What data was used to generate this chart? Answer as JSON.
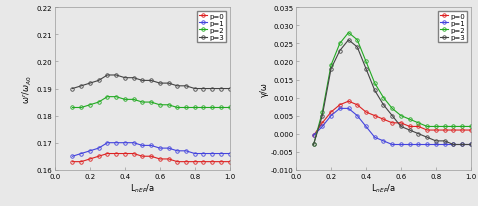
{
  "left_xlabel": "L$_{nEP}$/a",
  "left_ylabel": "ω$^r$/$ω_{A0}$",
  "right_xlabel": "L$_{nEP}$/a",
  "right_ylabel": "γ/ω",
  "left_ylim": [
    0.16,
    0.22
  ],
  "right_ylim": [
    -0.01,
    0.035
  ],
  "left_yticks": [
    0.16,
    0.17,
    0.18,
    0.19,
    0.2,
    0.21,
    0.22
  ],
  "right_yticks": [
    -0.01,
    -0.005,
    0.0,
    0.005,
    0.01,
    0.015,
    0.02,
    0.025,
    0.03,
    0.035
  ],
  "xlim": [
    0,
    1.0
  ],
  "xticks": [
    0,
    0.2,
    0.4,
    0.6,
    0.8,
    1.0
  ],
  "colors": [
    "#dd2222",
    "#4444dd",
    "#22aa22",
    "#444444"
  ],
  "labels": [
    "p=0",
    "p=1",
    "p=2",
    "p=3"
  ],
  "bg_color": "#e8e8e8",
  "x_vals": [
    0.1,
    0.15,
    0.2,
    0.25,
    0.3,
    0.35,
    0.4,
    0.45,
    0.5,
    0.55,
    0.6,
    0.65,
    0.7,
    0.75,
    0.8,
    0.85,
    0.9,
    0.95,
    1.0
  ],
  "left_p0": [
    0.163,
    0.163,
    0.164,
    0.165,
    0.166,
    0.166,
    0.166,
    0.166,
    0.165,
    0.165,
    0.164,
    0.164,
    0.163,
    0.163,
    0.163,
    0.163,
    0.163,
    0.163,
    0.163
  ],
  "left_p1": [
    0.165,
    0.166,
    0.167,
    0.168,
    0.17,
    0.17,
    0.17,
    0.17,
    0.169,
    0.169,
    0.168,
    0.168,
    0.167,
    0.167,
    0.166,
    0.166,
    0.166,
    0.166,
    0.166
  ],
  "left_p2": [
    0.183,
    0.183,
    0.184,
    0.185,
    0.187,
    0.187,
    0.186,
    0.186,
    0.185,
    0.185,
    0.184,
    0.184,
    0.183,
    0.183,
    0.183,
    0.183,
    0.183,
    0.183,
    0.183
  ],
  "left_p3": [
    0.19,
    0.191,
    0.192,
    0.193,
    0.195,
    0.195,
    0.194,
    0.194,
    0.193,
    0.193,
    0.192,
    0.192,
    0.191,
    0.191,
    0.19,
    0.19,
    0.19,
    0.19,
    0.19
  ],
  "right_p0": [
    -0.0005,
    0.003,
    0.006,
    0.008,
    0.009,
    0.008,
    0.006,
    0.005,
    0.004,
    0.003,
    0.003,
    0.002,
    0.002,
    0.001,
    0.001,
    0.001,
    0.001,
    0.001,
    0.001
  ],
  "right_p1": [
    -0.0005,
    0.002,
    0.005,
    0.007,
    0.007,
    0.005,
    0.002,
    -0.001,
    -0.002,
    -0.003,
    -0.003,
    -0.003,
    -0.003,
    -0.003,
    -0.003,
    -0.003,
    -0.003,
    -0.003,
    -0.003
  ],
  "right_p2": [
    -0.003,
    0.006,
    0.019,
    0.025,
    0.028,
    0.026,
    0.02,
    0.014,
    0.01,
    0.007,
    0.005,
    0.004,
    0.003,
    0.002,
    0.002,
    0.002,
    0.002,
    0.002,
    0.002
  ],
  "right_p3": [
    -0.003,
    0.005,
    0.018,
    0.023,
    0.026,
    0.024,
    0.018,
    0.012,
    0.008,
    0.005,
    0.002,
    0.001,
    0.0,
    -0.001,
    -0.002,
    -0.002,
    -0.003,
    -0.003,
    -0.003
  ]
}
